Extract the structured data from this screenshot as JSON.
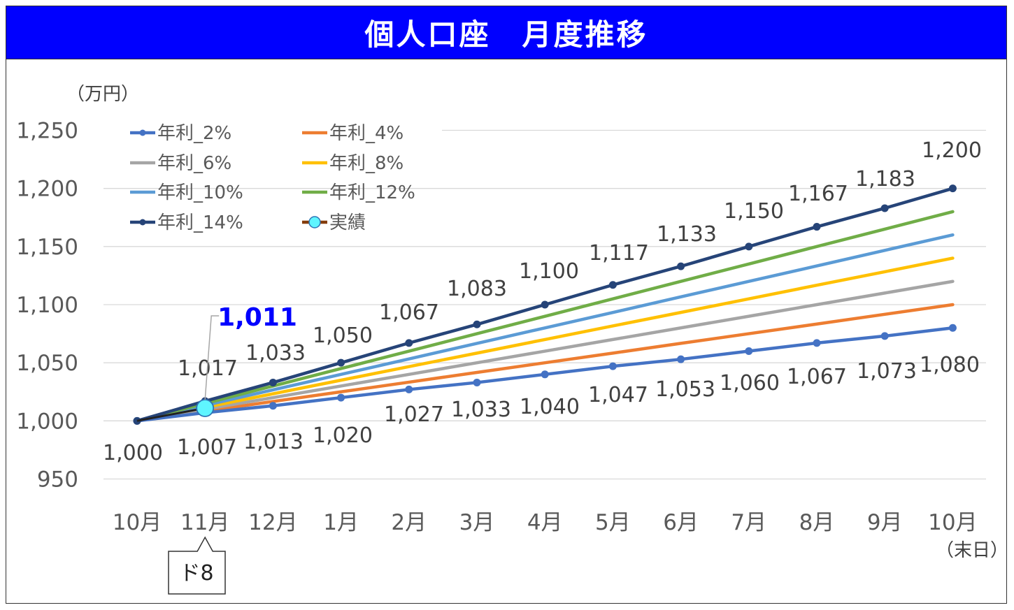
{
  "title": "個人口座　月度推移",
  "chart_data": {
    "type": "line",
    "title": "個人口座　月度推移",
    "ylabel": "（万円）",
    "ylim": [
      950,
      1250
    ],
    "yticks": [
      950,
      1000,
      1050,
      1100,
      1150,
      1200,
      1250
    ],
    "ytick_labels": [
      "950",
      "1,000",
      "1,050",
      "1,100",
      "1,150",
      "1,200",
      "1,250"
    ],
    "grid": true,
    "legend_position": "top-left",
    "categories": [
      "10月",
      "11月",
      "12月",
      "1月",
      "2月",
      "3月",
      "4月",
      "5月",
      "6月",
      "7月",
      "8月",
      "9月",
      "10月"
    ],
    "last_category_note": "（末日）",
    "series": [
      {
        "name": "年利_2%",
        "color": "#4472c4",
        "markers": true,
        "values": [
          1000,
          1007,
          1013,
          1020,
          1027,
          1033,
          1040,
          1047,
          1053,
          1060,
          1067,
          1073,
          1080
        ],
        "data_labels": [
          "1,000",
          "1,007",
          "1,013",
          "1,020",
          "1,027",
          "1,033",
          "1,040",
          "1,047",
          "1,053",
          "1,060",
          "1,067",
          "1,073",
          "1,080"
        ]
      },
      {
        "name": "年利_4%",
        "color": "#ed7d31",
        "markers": false,
        "values": [
          1000,
          1008.3,
          1016.7,
          1025,
          1033.3,
          1041.7,
          1050,
          1058.3,
          1066.7,
          1075,
          1083.3,
          1091.7,
          1100
        ]
      },
      {
        "name": "年利_6%",
        "color": "#a5a5a5",
        "markers": false,
        "values": [
          1000,
          1010,
          1020,
          1030,
          1040,
          1050,
          1060,
          1070,
          1080,
          1090,
          1100,
          1110,
          1120
        ]
      },
      {
        "name": "年利_8%",
        "color": "#ffc000",
        "markers": false,
        "values": [
          1000,
          1011.7,
          1023.3,
          1035,
          1046.7,
          1058.3,
          1070,
          1081.7,
          1093.3,
          1105,
          1116.7,
          1128.3,
          1140
        ]
      },
      {
        "name": "年利_10%",
        "color": "#5b9bd5",
        "markers": false,
        "values": [
          1000,
          1013.3,
          1026.7,
          1040,
          1053.3,
          1066.7,
          1080,
          1093.3,
          1106.7,
          1120,
          1133.3,
          1146.7,
          1160
        ]
      },
      {
        "name": "年利_12%",
        "color": "#70ad47",
        "markers": false,
        "values": [
          1000,
          1015,
          1030,
          1045,
          1060,
          1075,
          1090,
          1105,
          1120,
          1135,
          1150,
          1165,
          1180
        ]
      },
      {
        "name": "年利_14%",
        "color": "#264478",
        "markers": true,
        "values": [
          1000,
          1017,
          1033,
          1050,
          1067,
          1083,
          1100,
          1117,
          1133,
          1150,
          1167,
          1183,
          1200
        ],
        "data_labels": [
          "",
          "1,017",
          "1,033",
          "1,050",
          "1,067",
          "1,083",
          "1,100",
          "1,117",
          "1,133",
          "1,150",
          "1,167",
          "1,183",
          "1,200"
        ]
      },
      {
        "name": "実績",
        "color": "#843c0c",
        "marker_color": "#5ff5ff",
        "markers": true,
        "values": [
          1000,
          1011,
          null,
          null,
          null,
          null,
          null,
          null,
          null,
          null,
          null,
          null,
          null
        ]
      }
    ],
    "annotations": {
      "highlight_label": "1,011",
      "callout_label": "ド8"
    }
  }
}
